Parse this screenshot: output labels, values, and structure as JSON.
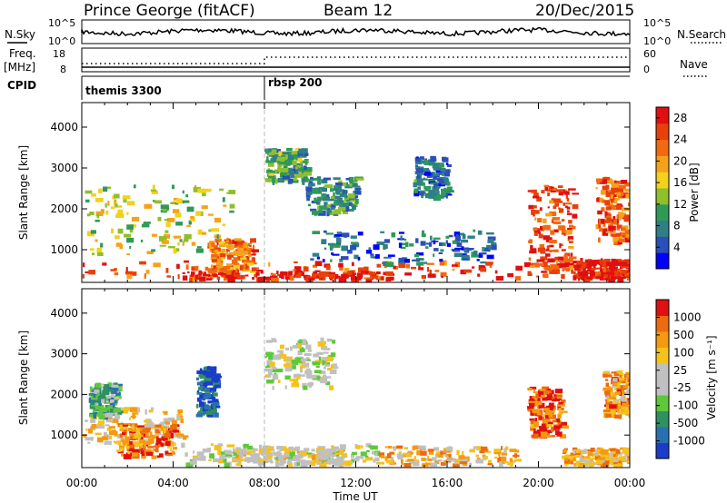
{
  "header": {
    "station": "Prince George (fitACF)",
    "beam": "Beam 12",
    "date": "20/Dec/2015"
  },
  "top_panels": {
    "nsky_label": "N.Sky",
    "nsky_ticks": [
      "10^5",
      "10^0"
    ],
    "nsearch_label": "N.Search",
    "nsearch_ticks": [
      "10^5",
      "10^0"
    ],
    "freq_label": "Freq.",
    "freq_unit": "[MHz]",
    "freq_ticks": [
      "18",
      "8"
    ],
    "nave_label": "Nave",
    "nave_ticks": [
      "60",
      "0"
    ],
    "cpid_label": "CPID",
    "cpid_entries": [
      {
        "name": "themis 3300",
        "start_hour": 0
      },
      {
        "name": "rbsp 200",
        "start_hour": 8
      }
    ]
  },
  "chart_data": [
    {
      "type": "heatmap",
      "title": "",
      "xlabel": "Time UT",
      "ylabel": "Slant Range [km]",
      "x_ticks": [
        "00:00",
        "04:00",
        "08:00",
        "12:00",
        "16:00",
        "20:00",
        "00:00"
      ],
      "xlim_hours": [
        0,
        24
      ],
      "y_ticks": [
        1000,
        2000,
        3000,
        4000
      ],
      "ylim": [
        200,
        4600
      ],
      "colorbar": {
        "label": "Power [dB]",
        "ticks": [
          "4",
          "8",
          "12",
          "16",
          "20",
          "24",
          "28"
        ],
        "range": [
          0,
          30
        ],
        "colors": [
          "#0000ff",
          "#2a4fb8",
          "#2f7f86",
          "#2f9a58",
          "#8fbf2a",
          "#f2d21a",
          "#f5a21a",
          "#f26a10",
          "#e8400a",
          "#e01010"
        ]
      },
      "patches": [
        {
          "t0": 0,
          "t1": 24,
          "r0": 350,
          "r1": 750,
          "level": 0.85
        },
        {
          "t0": 4.4,
          "t1": 13.5,
          "r0": 300,
          "r1": 500,
          "level": 0.95
        },
        {
          "t0": 0.1,
          "t1": 6.5,
          "r0": 900,
          "r1": 2600,
          "level": 0.5
        },
        {
          "t0": 5.5,
          "t1": 7.5,
          "r0": 500,
          "r1": 1300,
          "level": 0.75
        },
        {
          "t0": 8.0,
          "t1": 9.8,
          "r0": 2700,
          "r1": 3500,
          "level": 0.35
        },
        {
          "t0": 9.8,
          "t1": 12.0,
          "r0": 1900,
          "r1": 2800,
          "level": 0.3
        },
        {
          "t0": 19.5,
          "t1": 21.5,
          "r0": 400,
          "r1": 2600,
          "level": 0.85
        },
        {
          "t0": 21.5,
          "t1": 24,
          "r0": 300,
          "r1": 800,
          "level": 0.95
        },
        {
          "t0": 22.5,
          "t1": 24,
          "r0": 1200,
          "r1": 2800,
          "level": 0.8
        },
        {
          "t0": 14.5,
          "t1": 16.0,
          "r0": 2300,
          "r1": 3300,
          "level": 0.25
        },
        {
          "t0": 10.0,
          "t1": 18.0,
          "r0": 700,
          "r1": 1500,
          "level": 0.2
        }
      ]
    },
    {
      "type": "heatmap",
      "title": "",
      "xlabel": "Time UT",
      "ylabel": "Slant Range [km]",
      "x_ticks": [
        "00:00",
        "04:00",
        "08:00",
        "12:00",
        "16:00",
        "20:00",
        "00:00"
      ],
      "xlim_hours": [
        0,
        24
      ],
      "y_ticks": [
        1000,
        2000,
        3000,
        4000
      ],
      "ylim": [
        200,
        4600
      ],
      "colorbar": {
        "label": "Velocity [m s⁻¹]",
        "ticks": [
          "1000",
          "500",
          "100",
          "25",
          "-25",
          "-100",
          "-500",
          "-1000"
        ],
        "range": [
          -1200,
          1200
        ],
        "colors": [
          "#1a3cc8",
          "#2a70b0",
          "#2f9060",
          "#5ec83a",
          "#c0c0c0",
          "#c0c0c0",
          "#f5c21a",
          "#f59a10",
          "#ee6a10",
          "#e01010"
        ]
      },
      "patches": [
        {
          "t0": 0,
          "t1": 4.5,
          "r0": 800,
          "r1": 1700,
          "level": 0.62
        },
        {
          "t0": 1.5,
          "t1": 4.0,
          "r0": 500,
          "r1": 1300,
          "level": 0.8
        },
        {
          "t0": 4.5,
          "t1": 13.0,
          "r0": 300,
          "r1": 800,
          "level": 0.5
        },
        {
          "t0": 6.5,
          "t1": 11.5,
          "r0": 350,
          "r1": 700,
          "level": 0.55
        },
        {
          "t0": 13.0,
          "t1": 19.0,
          "r0": 300,
          "r1": 750,
          "level": 0.7
        },
        {
          "t0": 19.5,
          "t1": 21.0,
          "r0": 1000,
          "r1": 2200,
          "level": 0.85
        },
        {
          "t0": 21.0,
          "t1": 24,
          "r0": 300,
          "r1": 700,
          "level": 0.7
        },
        {
          "t0": 22.8,
          "t1": 24,
          "r0": 1500,
          "r1": 2600,
          "level": 0.75
        },
        {
          "t0": 5.0,
          "t1": 5.8,
          "r0": 1500,
          "r1": 2700,
          "level": 0.1
        },
        {
          "t0": 8.0,
          "t1": 11.0,
          "r0": 2200,
          "r1": 3400,
          "level": 0.5
        },
        {
          "t0": 0.3,
          "t1": 1.5,
          "r0": 1500,
          "r1": 2300,
          "level": 0.3
        }
      ]
    }
  ]
}
